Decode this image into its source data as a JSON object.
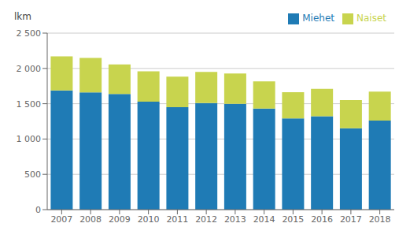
{
  "chart_data": {
    "type": "bar",
    "stacked": true,
    "categories": [
      "2007",
      "2008",
      "2009",
      "2010",
      "2011",
      "2012",
      "2013",
      "2014",
      "2015",
      "2016",
      "2017",
      "2018"
    ],
    "series": [
      {
        "name": "Miehet",
        "color": "#1f7bb5",
        "values": [
          1688,
          1659,
          1638,
          1530,
          1450,
          1510,
          1498,
          1432,
          1291,
          1322,
          1152,
          1261
        ]
      },
      {
        "name": "Naiset",
        "color": "#c8d44e",
        "values": [
          484,
          490,
          418,
          428,
          432,
          441,
          430,
          385,
          372,
          387,
          400,
          410
        ]
      }
    ],
    "y_label": "lkm",
    "ylim": [
      0,
      2500
    ],
    "yticks": [
      0,
      500,
      {
        "value": 1000,
        "label": "1 000"
      },
      {
        "value": 1500,
        "label": "1 500"
      },
      {
        "value": 2000,
        "label": "2 000"
      },
      {
        "value": 2500,
        "label": "2 500"
      }
    ],
    "grid": true,
    "legend": "upper right"
  }
}
